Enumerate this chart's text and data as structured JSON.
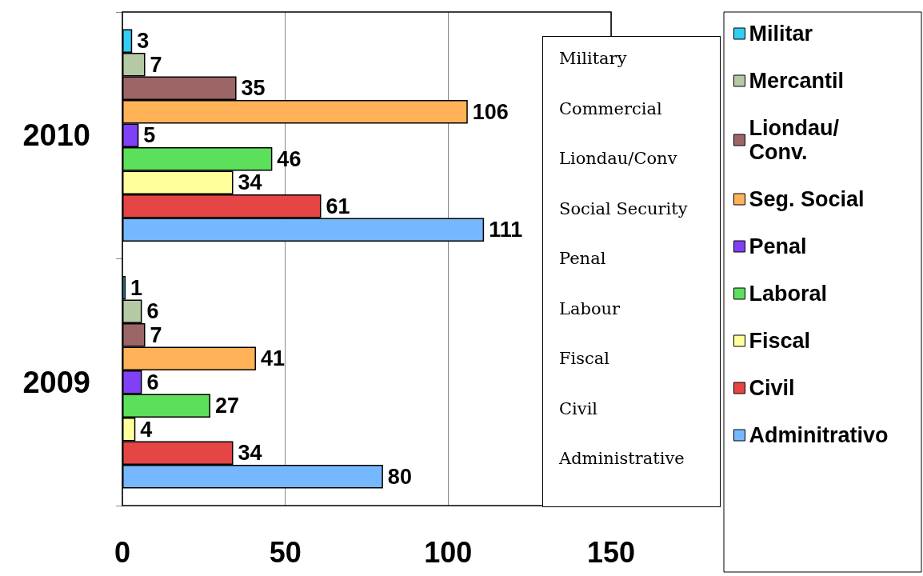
{
  "chart_data": {
    "type": "bar",
    "orientation": "horizontal",
    "categories": [
      "2010",
      "2009"
    ],
    "series": [
      {
        "name": "Militar",
        "color": "#33ccf5",
        "values": [
          3,
          1
        ]
      },
      {
        "name": "Mercantil",
        "color": "#b5c9a5",
        "values": [
          7,
          6
        ]
      },
      {
        "name": "Liondau/ Conv.",
        "color": "#9c6666",
        "values": [
          35,
          7
        ]
      },
      {
        "name": "Seg. Social",
        "color": "#ffb257",
        "values": [
          106,
          41
        ]
      },
      {
        "name": "Penal",
        "color": "#8040f5",
        "values": [
          5,
          6
        ]
      },
      {
        "name": "Laboral",
        "color": "#5ce05c",
        "values": [
          46,
          27
        ]
      },
      {
        "name": "Fiscal",
        "color": "#ffff9c",
        "values": [
          34,
          4
        ]
      },
      {
        "name": "Civil",
        "color": "#e64545",
        "values": [
          61,
          34
        ]
      },
      {
        "name": "Adminitrativo",
        "color": "#75b8ff",
        "values": [
          111,
          80
        ]
      }
    ],
    "xlim": [
      0,
      150
    ],
    "xticks": [
      0,
      50,
      100,
      150
    ],
    "grid": "x",
    "legend": "right",
    "data_labels": true,
    "annotations": [
      "Military",
      "Commercial",
      "Liondau/Conv",
      "Social Security",
      "Penal",
      "Labour",
      "Fiscal",
      "Civil",
      "Administrative"
    ]
  }
}
